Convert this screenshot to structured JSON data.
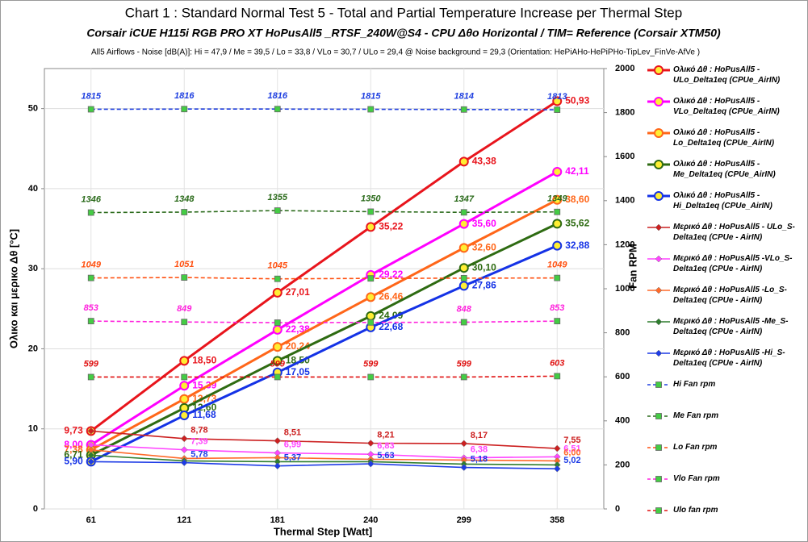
{
  "chart_data": {
    "type": "line",
    "title": "Chart 1 :  Standard  Normal  Test  5  -  Total and Partial  Temperature  Increase  per Thermal Step",
    "subtitle": "Corsair iCUE H115i RGB PRO XT  HoPusAll5 _RTSF_240W@S4 - CPU  Δθo Horizontal / TIM= Reference (Corsair XTM50)",
    "note": "All5  Airflows  - Noise [dB(A)]: Hi = 47,9 / Me = 39,5 / Lo = 33,8 / VLo = 30,7 / ULo = 29,4 @ Noise background = 29,3    (Orientation: HePiAHo-HePiPHo-TipLev_FinVe-AfVe  )",
    "xlabel": "Thermal Step [Watt]",
    "ylabel": "Ολικο και μερικο  Δθ  [°C]",
    "y2label": "Fan RPM",
    "categories": [
      "61",
      "121",
      "181",
      "240",
      "299",
      "358"
    ],
    "ylim": [
      0,
      55
    ],
    "yticks": [
      0,
      10,
      20,
      30,
      40,
      50
    ],
    "y2lim": [
      0,
      2000
    ],
    "y2ticks": [
      0,
      200,
      400,
      600,
      800,
      1000,
      1200,
      1400,
      1600,
      1800,
      2000
    ],
    "grid": true,
    "series": [
      {
        "name": "Ολικό Δθ : HoPusAll5 - ULo_Delta1eq (CPUe_AirIN)",
        "color": "#e8141c",
        "marker": "circle",
        "values": [
          9.73,
          18.5,
          27.01,
          35.22,
          43.38,
          50.93
        ],
        "value_labels": [
          "9,73",
          "18,50",
          "27,01",
          "35,22",
          "43,38",
          "50,93"
        ]
      },
      {
        "name": "Ολικό Δθ : HoPusAll5 - VLo_Delta1eq (CPUe_AirIN)",
        "color": "#ff00ff",
        "marker": "circle",
        "values": [
          8.0,
          15.39,
          22.38,
          29.22,
          35.6,
          42.11
        ],
        "value_labels": [
          "8,00",
          "15,39",
          "22,38",
          "29,22",
          "35,60",
          "42,11"
        ]
      },
      {
        "name": "Ολικό Δθ : HoPusAll5 - Lo_Delta1eq (CPUe_AirIN)",
        "color": "#ff6619",
        "marker": "circle",
        "values": [
          7.38,
          13.73,
          20.24,
          26.46,
          32.6,
          38.6
        ],
        "value_labels": [
          "7,38",
          "13,73",
          "20,24",
          "26,46",
          "32,60",
          "38,60"
        ]
      },
      {
        "name": "Ολικό Δθ : HoPusAll5 - Me_Delta1eq (CPUe_AirIN)",
        "color": "#2e6b12",
        "marker": "circle",
        "values": [
          6.71,
          12.6,
          18.5,
          24.09,
          30.1,
          35.62
        ],
        "value_labels": [
          "6,71",
          "12,60",
          "18,50",
          "24,09",
          "30,10",
          "35,62"
        ]
      },
      {
        "name": "Ολικό Δθ : HoPusAll5 - Hi_Delta1eq (CPUe_AirIN)",
        "color": "#1432e6",
        "marker": "circle",
        "values": [
          5.9,
          11.68,
          17.05,
          22.68,
          27.86,
          32.88
        ],
        "value_labels": [
          "5,90",
          "11,68",
          "17,05",
          "22,68",
          "27,86",
          "32,88"
        ]
      },
      {
        "name": "Μερικό Δθ : HoPusAll5 - ULo_S-Delta1eq (CPUe - AirIN)",
        "color": "#cc2020",
        "marker": "diamond",
        "values": [
          9.73,
          8.78,
          8.51,
          8.21,
          8.17,
          7.55
        ],
        "value_labels": [
          null,
          "8,78",
          "8,51",
          "8,21",
          "8,17",
          "7,55"
        ]
      },
      {
        "name": "Μερικό Δθ : HoPusAll5 -VLo_S-Delta1eq (CPUe - AirIN)",
        "color": "#ff44ff",
        "marker": "diamond",
        "values": [
          8.0,
          7.39,
          6.99,
          6.83,
          6.38,
          6.51
        ],
        "value_labels": [
          null,
          "7,39",
          "6,99",
          "6,83",
          "6,38",
          "6,51"
        ]
      },
      {
        "name": "Μερικό Δθ : HoPusAll5 -Lo_S-Delta1eq (CPUe - AirIN)",
        "color": "#ff6a2a",
        "marker": "diamond",
        "values": [
          7.38,
          6.3,
          6.4,
          6.2,
          6.1,
          6.0
        ],
        "value_labels": [
          null,
          null,
          null,
          null,
          null,
          "6,00"
        ]
      },
      {
        "name": "Μερικό Δθ : HoPusAll5 -Me_S-Delta1eq (CPUe - AirIN)",
        "color": "#2e7d2e",
        "marker": "diamond",
        "values": [
          6.71,
          6.0,
          5.9,
          5.9,
          5.6,
          5.5
        ]
      },
      {
        "name": "Μερικό Δθ : HoPusAll5 -Hi_S-Delta1eq (CPUe - AirIN)",
        "color": "#1e3ce6",
        "marker": "diamond",
        "values": [
          5.9,
          5.78,
          5.37,
          5.63,
          5.18,
          5.02
        ],
        "value_labels": [
          null,
          "5,78",
          "5,37",
          "5,63",
          "5,18",
          "5,02"
        ]
      },
      {
        "name": "Hi Fan rpm",
        "color": "#2040e0",
        "marker": "square",
        "dash": true,
        "axis": "y2",
        "values": [
          1815,
          1816,
          1816,
          1815,
          1814,
          1813
        ],
        "value_labels": [
          "1815",
          "1816",
          "1816",
          "1815",
          "1814",
          "1813"
        ]
      },
      {
        "name": "Me Fan rpm",
        "color": "#2a6a1a",
        "marker": "square",
        "dash": true,
        "axis": "y2",
        "values": [
          1346,
          1348,
          1355,
          1350,
          1347,
          1349
        ],
        "value_labels": [
          "1346",
          "1348",
          "1355",
          "1350",
          "1347",
          "1349"
        ]
      },
      {
        "name": "Lo Fan rpm",
        "color": "#ff5010",
        "marker": "square",
        "dash": true,
        "axis": "y2",
        "values": [
          1049,
          1051,
          1045,
          1047,
          1048,
          1049
        ],
        "value_labels": [
          "1049",
          "1051",
          "1045",
          null,
          null,
          "1049"
        ]
      },
      {
        "name": "Vlo Fan rpm",
        "color": "#ff22dd",
        "marker": "square",
        "dash": true,
        "axis": "y2",
        "values": [
          853,
          849,
          846,
          847,
          848,
          853
        ],
        "value_labels": [
          "853",
          "849",
          null,
          null,
          "848",
          "853"
        ]
      },
      {
        "name": "Ulo fan rpm",
        "color": "#e01010",
        "marker": "square",
        "dash": true,
        "axis": "y2",
        "values": [
          599,
          599,
          599,
          599,
          599,
          603
        ],
        "value_labels": [
          "599",
          null,
          "599",
          "599",
          "599",
          "603"
        ]
      }
    ]
  }
}
